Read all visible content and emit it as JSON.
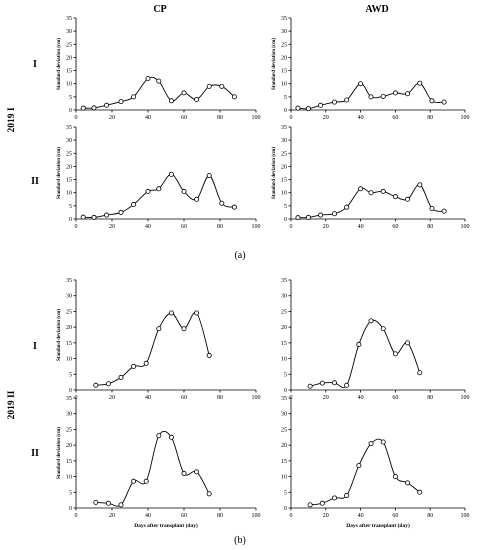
{
  "figure": {
    "column_headers": [
      "CP",
      "AWD"
    ],
    "row_labels": [
      "I",
      "II"
    ],
    "year_labels": [
      "2019 I",
      "2019 II"
    ],
    "captions": [
      "(a)",
      "(b)"
    ]
  },
  "chart_data": [
    {
      "type": "line",
      "panel": "2019 I — CP — I",
      "ylabel": "Standard deviation (cm)",
      "xlabel": "",
      "xlim": [
        0,
        100
      ],
      "ylim": [
        0,
        35
      ],
      "xticks": [
        0,
        20,
        40,
        60,
        80,
        100
      ],
      "yticks": [
        0,
        5,
        10,
        15,
        20,
        25,
        30,
        35
      ],
      "grid": false,
      "marker": "open circle",
      "smooth": true,
      "x": [
        4,
        10,
        17,
        25,
        32,
        40,
        46,
        53,
        60,
        67,
        74,
        81,
        88
      ],
      "y": [
        0.7,
        0.8,
        1.8,
        3.2,
        5,
        12,
        11,
        3.5,
        6.5,
        4,
        9,
        9,
        5
      ]
    },
    {
      "type": "line",
      "panel": "2019 I — AWD — I",
      "ylabel": "Standard deviation (cm)",
      "xlabel": "",
      "xlim": [
        0,
        100
      ],
      "ylim": [
        0,
        35
      ],
      "xticks": [
        0,
        20,
        40,
        60,
        80,
        100
      ],
      "yticks": [
        0,
        5,
        10,
        15,
        20,
        25,
        30,
        35
      ],
      "grid": false,
      "marker": "open circle",
      "smooth": true,
      "x": [
        4,
        10,
        17,
        25,
        32,
        40,
        46,
        53,
        60,
        67,
        74,
        81,
        88
      ],
      "y": [
        0.7,
        0.5,
        1.8,
        3,
        3.8,
        10,
        5,
        5.2,
        6.5,
        6.2,
        10.2,
        3.5,
        3
      ]
    },
    {
      "type": "line",
      "panel": "2019 I — CP — II",
      "ylabel": "Standard deviation (cm)",
      "xlabel": "",
      "xlim": [
        0,
        100
      ],
      "ylim": [
        0,
        35
      ],
      "xticks": [
        0,
        20,
        40,
        60,
        80,
        100
      ],
      "yticks": [
        0,
        5,
        10,
        15,
        20,
        25,
        30,
        35
      ],
      "grid": false,
      "marker": "open circle",
      "smooth": true,
      "x": [
        4,
        10,
        17,
        25,
        32,
        40,
        46,
        53,
        60,
        67,
        74,
        81,
        88
      ],
      "y": [
        0.7,
        0.6,
        1.5,
        2.5,
        5.5,
        10.5,
        11.5,
        17,
        10.5,
        7.5,
        16.5,
        6,
        4.5
      ]
    },
    {
      "type": "line",
      "panel": "2019 I — AWD — II",
      "ylabel": "Standard deviation (cm)",
      "xlabel": "",
      "xlim": [
        0,
        100
      ],
      "ylim": [
        0,
        35
      ],
      "xticks": [
        0,
        20,
        40,
        60,
        80,
        100
      ],
      "yticks": [
        0,
        5,
        10,
        15,
        20,
        25,
        30,
        35
      ],
      "grid": false,
      "marker": "open circle",
      "smooth": true,
      "x": [
        4,
        10,
        17,
        25,
        32,
        40,
        46,
        53,
        60,
        67,
        74,
        81,
        88
      ],
      "y": [
        0.5,
        0.6,
        1.5,
        2,
        4.5,
        11.5,
        10,
        10.5,
        8.5,
        7.5,
        13,
        4,
        3
      ]
    },
    {
      "type": "line",
      "panel": "2019 II — CP — I",
      "ylabel": "Standard deviation (cm)",
      "xlabel": "",
      "xlim": [
        0,
        100
      ],
      "ylim": [
        0,
        35
      ],
      "xticks": [
        0,
        20,
        40,
        60,
        80,
        100
      ],
      "yticks": [
        0,
        5,
        10,
        15,
        20,
        25,
        30,
        35
      ],
      "grid": false,
      "marker": "open circle",
      "smooth": true,
      "x": [
        11,
        18,
        25,
        32,
        39,
        46,
        53,
        60,
        67,
        74
      ],
      "y": [
        1.5,
        2,
        4,
        7.5,
        8.5,
        19.5,
        24.5,
        19.5,
        24.5,
        11
      ]
    },
    {
      "type": "line",
      "panel": "2019 II — AWD — I",
      "ylabel": "",
      "xlabel": "",
      "xlim": [
        0,
        100
      ],
      "ylim": [
        0,
        35
      ],
      "xticks": [
        0,
        20,
        40,
        60,
        80,
        100
      ],
      "yticks": [
        0,
        5,
        10,
        15,
        20,
        25,
        30,
        35
      ],
      "grid": false,
      "marker": "open circle",
      "smooth": true,
      "x": [
        11,
        18,
        25,
        32,
        39,
        46,
        53,
        60,
        67,
        74
      ],
      "y": [
        1.2,
        2.2,
        2.3,
        1.5,
        14.5,
        22,
        19.5,
        11.5,
        15,
        5.5
      ]
    },
    {
      "type": "line",
      "panel": "2019 II — CP — II",
      "ylabel": "Standard deviation (cm)",
      "xlabel": "Days after transplant (day)",
      "xlim": [
        0,
        100
      ],
      "ylim": [
        0,
        35
      ],
      "xticks": [
        0,
        20,
        40,
        60,
        80,
        100
      ],
      "yticks": [
        0,
        5,
        10,
        15,
        20,
        25,
        30,
        35
      ],
      "grid": false,
      "marker": "open circle",
      "smooth": true,
      "x": [
        11,
        18,
        25,
        32,
        39,
        46,
        53,
        60,
        67,
        74
      ],
      "y": [
        1.8,
        1.5,
        1,
        8.5,
        8.5,
        23,
        22.5,
        11,
        11.5,
        4.5
      ]
    },
    {
      "type": "line",
      "panel": "2019 II — AWD — II",
      "ylabel": "",
      "xlabel": "Days after transplant (day)",
      "xlim": [
        0,
        100
      ],
      "ylim": [
        0,
        35
      ],
      "xticks": [
        0,
        20,
        40,
        60,
        80,
        100
      ],
      "yticks": [
        0,
        5,
        10,
        15,
        20,
        25,
        30,
        35
      ],
      "grid": false,
      "marker": "open circle",
      "smooth": true,
      "x": [
        11,
        18,
        25,
        32,
        39,
        46,
        53,
        60,
        67,
        74
      ],
      "y": [
        1,
        1.5,
        3.2,
        4,
        13.5,
        20.5,
        21,
        10,
        8,
        5
      ]
    }
  ]
}
